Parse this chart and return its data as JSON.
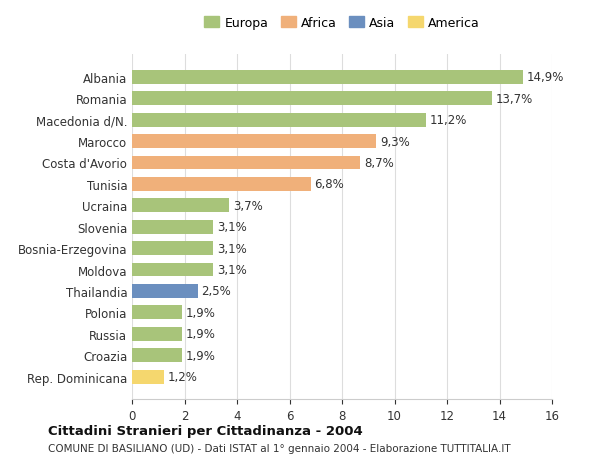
{
  "categories": [
    "Rep. Dominicana",
    "Croazia",
    "Russia",
    "Polonia",
    "Thailandia",
    "Moldova",
    "Bosnia-Erzegovina",
    "Slovenia",
    "Ucraina",
    "Tunisia",
    "Costa d'Avorio",
    "Marocco",
    "Macedonia d/N.",
    "Romania",
    "Albania"
  ],
  "values": [
    1.2,
    1.9,
    1.9,
    1.9,
    2.5,
    3.1,
    3.1,
    3.1,
    3.7,
    6.8,
    8.7,
    9.3,
    11.2,
    13.7,
    14.9
  ],
  "colors": [
    "#f5d76e",
    "#a8c47a",
    "#a8c47a",
    "#a8c47a",
    "#6b8fbf",
    "#a8c47a",
    "#a8c47a",
    "#a8c47a",
    "#a8c47a",
    "#f0b07a",
    "#f0b07a",
    "#f0b07a",
    "#a8c47a",
    "#a8c47a",
    "#a8c47a"
  ],
  "labels": [
    "1,2%",
    "1,9%",
    "1,9%",
    "1,9%",
    "2,5%",
    "3,1%",
    "3,1%",
    "3,1%",
    "3,7%",
    "6,8%",
    "8,7%",
    "9,3%",
    "11,2%",
    "13,7%",
    "14,9%"
  ],
  "legend": {
    "Europa": "#a8c47a",
    "Africa": "#f0b07a",
    "Asia": "#6b8fbf",
    "America": "#f5d76e"
  },
  "title": "Cittadini Stranieri per Cittadinanza - 2004",
  "subtitle": "COMUNE DI BASILIANO (UD) - Dati ISTAT al 1° gennaio 2004 - Elaborazione TUTTITALIA.IT",
  "xlim": [
    0,
    16
  ],
  "xticks": [
    0,
    2,
    4,
    6,
    8,
    10,
    12,
    14,
    16
  ],
  "background_color": "#ffffff",
  "grid_color": "#dddddd"
}
